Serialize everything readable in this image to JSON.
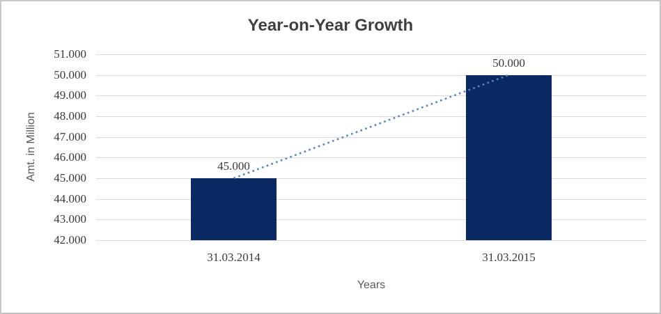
{
  "chart_data": {
    "type": "bar",
    "title": "Year-on-Year Growth",
    "xlabel": "Years",
    "ylabel": "Amt. in Million",
    "categories": [
      "31.03.2014",
      "31.03.2015"
    ],
    "values": [
      45000,
      50000
    ],
    "value_labels": [
      "45.000",
      "50.000"
    ],
    "ylim": [
      42000,
      51000
    ],
    "ytick_step": 1000,
    "ytick_values": [
      42000,
      43000,
      44000,
      45000,
      46000,
      47000,
      48000,
      49000,
      50000,
      51000
    ],
    "ytick_labels": [
      "42.000",
      "43.000",
      "44.000",
      "45.000",
      "46.000",
      "47.000",
      "48.000",
      "49.000",
      "50.000",
      "51.000"
    ],
    "grid": true,
    "legend": false,
    "trendline": {
      "style": "dotted",
      "from_point": [
        0,
        45000
      ],
      "to_point": [
        1,
        50000
      ]
    },
    "colors": {
      "bar": "#0b2a64",
      "trendline": "#4f86c6",
      "gridline": "#d9d9d9",
      "tick_text": "#3a3a3a",
      "axis_title_text": "#595959",
      "title_text": "#404040",
      "frame_border": "#c6c6c6"
    }
  }
}
